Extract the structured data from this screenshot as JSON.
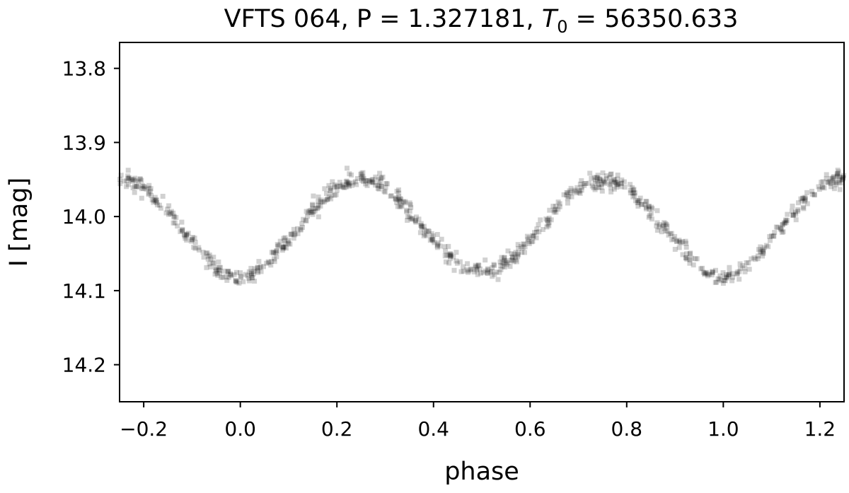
{
  "chart_data": {
    "type": "scatter",
    "title_main": "VFTS 064, P = 1.327181, ",
    "title_t_symbol": "T",
    "title_t_subscript": "0",
    "title_t_value": " = 56350.633",
    "xlabel": "phase",
    "ylabel": "I [mag]",
    "xlim": [
      -0.25,
      1.25
    ],
    "ylim": [
      14.25,
      13.765
    ],
    "y_inverted": true,
    "grid": false,
    "x_ticks": [
      -0.2,
      0.0,
      0.2,
      0.4,
      0.6,
      0.8,
      1.0,
      1.2
    ],
    "x_tick_labels": [
      "−0.2",
      "0.0",
      "0.2",
      "0.4",
      "0.6",
      "0.8",
      "1.0",
      "1.2"
    ],
    "y_ticks": [
      13.8,
      13.9,
      14.0,
      14.1,
      14.2
    ],
    "y_tick_labels": [
      "13.8",
      "13.9",
      "14.0",
      "14.1",
      "14.2"
    ],
    "marker_color": "#000000",
    "marker_alpha": 0.18,
    "light_curve_model": {
      "mean_mag": 14.012,
      "semi_amplitude_mag": 0.062,
      "secondary_depth_offset_mag": 0.008,
      "scatter_mag": 0.006,
      "points_per_unit_phase": 560
    }
  }
}
